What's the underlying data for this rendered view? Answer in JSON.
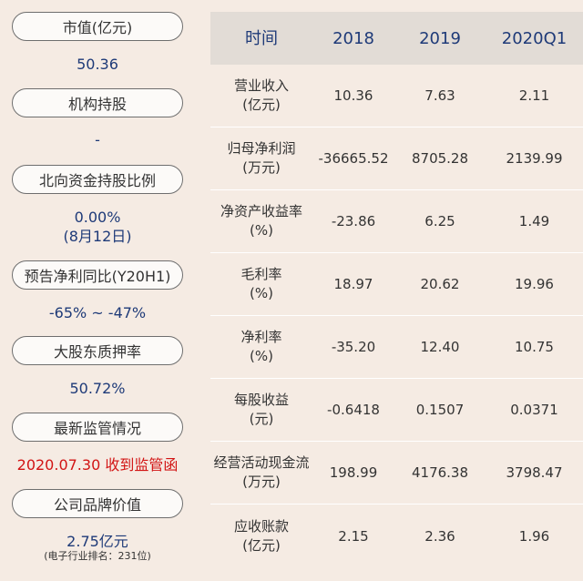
{
  "metrics": [
    {
      "label": "市值(亿元)",
      "value": "50.36"
    },
    {
      "label": "机构持股",
      "value": "-"
    },
    {
      "label": "北向资金持股比例",
      "value": "0.00%",
      "value2": "(8月12日)"
    },
    {
      "label": "预告净利同比(Y20H1)",
      "value": "-65% ~ -47%"
    },
    {
      "label": "大股东质押率",
      "value": "50.72%"
    },
    {
      "label": "最新监管情况",
      "value": "2020.07.30 收到监管函",
      "value_color": "#d21414"
    },
    {
      "label": "公司品牌价值",
      "value": "2.75亿元",
      "note": "(电子行业排名：231位)"
    }
  ],
  "table": {
    "headers": [
      "时间",
      "2018",
      "2019",
      "2020Q1"
    ],
    "rows": [
      {
        "name": "营业收入",
        "unit": "(亿元)",
        "values": [
          "10.36",
          "7.63",
          "2.11"
        ]
      },
      {
        "name": "归母净利润",
        "unit": "(万元)",
        "values": [
          "-36665.52",
          "8705.28",
          "2139.99"
        ]
      },
      {
        "name": "净资产收益率",
        "unit": "(%)",
        "values": [
          "-23.86",
          "6.25",
          "1.49"
        ]
      },
      {
        "name": "毛利率",
        "unit": "(%)",
        "values": [
          "18.97",
          "20.62",
          "19.96"
        ]
      },
      {
        "name": "净利率",
        "unit": "(%)",
        "values": [
          "-35.20",
          "12.40",
          "10.75"
        ]
      },
      {
        "name": "每股收益",
        "unit": "(元)",
        "values": [
          "-0.6418",
          "0.1507",
          "0.0371"
        ]
      },
      {
        "name": "经营活动现金流",
        "unit": "(万元)",
        "values": [
          "198.99",
          "4176.38",
          "3798.47"
        ]
      },
      {
        "name": "应收账款",
        "unit": "(亿元)",
        "values": [
          "2.15",
          "2.36",
          "1.96"
        ]
      }
    ]
  }
}
